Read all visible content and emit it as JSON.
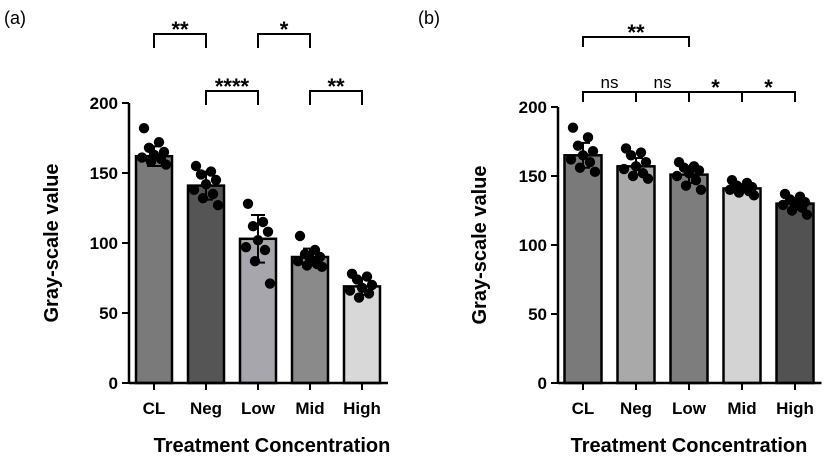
{
  "chart_data": [
    {
      "type": "bar",
      "panel_label": "(a)",
      "categories": [
        "CL",
        "Neg",
        "Low",
        "Mid",
        "High"
      ],
      "values": [
        162,
        141,
        103,
        90,
        69
      ],
      "errors": [
        7,
        10,
        17,
        6,
        6
      ],
      "colors": [
        "#7a7a7a",
        "#555555",
        "#a8a6ad",
        "#8a8a8a",
        "#d8d8d8"
      ],
      "points": [
        [
          182,
          172,
          168,
          165,
          163,
          161,
          160,
          158,
          156
        ],
        [
          155,
          151,
          149,
          145,
          142,
          138,
          135,
          132,
          127
        ],
        [
          128,
          115,
          112,
          108,
          102,
          97,
          95,
          87,
          71
        ],
        [
          105,
          95,
          92,
          90,
          89,
          87,
          85,
          84,
          83
        ],
        [
          78,
          76,
          74,
          70,
          68,
          66,
          64,
          61
        ]
      ],
      "xlabel": "Treatment Concentration",
      "ylabel": "Gray-scale value",
      "ylim": [
        0,
        200
      ],
      "yticks": [
        0,
        50,
        100,
        150,
        200
      ],
      "significance": [
        {
          "from": 0,
          "to": 1,
          "label": "**",
          "level": 3
        },
        {
          "from": 2,
          "to": 3,
          "label": "*",
          "level": 3
        },
        {
          "from": 1,
          "to": 2,
          "label": "****",
          "level": 2
        },
        {
          "from": 3,
          "to": 4,
          "label": "**",
          "level": 2
        }
      ]
    },
    {
      "type": "bar",
      "panel_label": "(b)",
      "categories": [
        "CL",
        "Neg",
        "Low",
        "Mid",
        "High"
      ],
      "values": [
        165,
        157,
        151,
        141,
        130
      ],
      "errors": [
        9,
        6,
        6,
        3,
        4
      ],
      "colors": [
        "#7a7a7a",
        "#a9a9a9",
        "#7d7d7d",
        "#d3d3d3",
        "#525252"
      ],
      "points": [
        [
          185,
          178,
          172,
          168,
          165,
          162,
          160,
          156,
          153
        ],
        [
          170,
          167,
          165,
          160,
          157,
          155,
          152,
          150,
          148
        ],
        [
          160,
          157,
          156,
          154,
          152,
          150,
          147,
          143,
          140
        ],
        [
          147,
          145,
          143,
          142,
          141,
          140,
          139,
          138,
          136
        ],
        [
          137,
          135,
          133,
          131,
          130,
          129,
          127,
          125,
          122
        ]
      ],
      "xlabel": "Treatment Concentration",
      "ylabel": "Gray-scale value",
      "ylim": [
        0,
        200
      ],
      "yticks": [
        0,
        50,
        100,
        150,
        200
      ],
      "significance": [
        {
          "from": 0,
          "to": 2,
          "label": "**",
          "level": 2
        },
        {
          "from": 0,
          "to": 1,
          "label": "ns",
          "level": 1
        },
        {
          "from": 1,
          "to": 2,
          "label": "ns",
          "level": 1
        },
        {
          "from": 2,
          "to": 3,
          "label": "*",
          "level": 1
        },
        {
          "from": 3,
          "to": 4,
          "label": "*",
          "level": 1
        }
      ]
    }
  ]
}
